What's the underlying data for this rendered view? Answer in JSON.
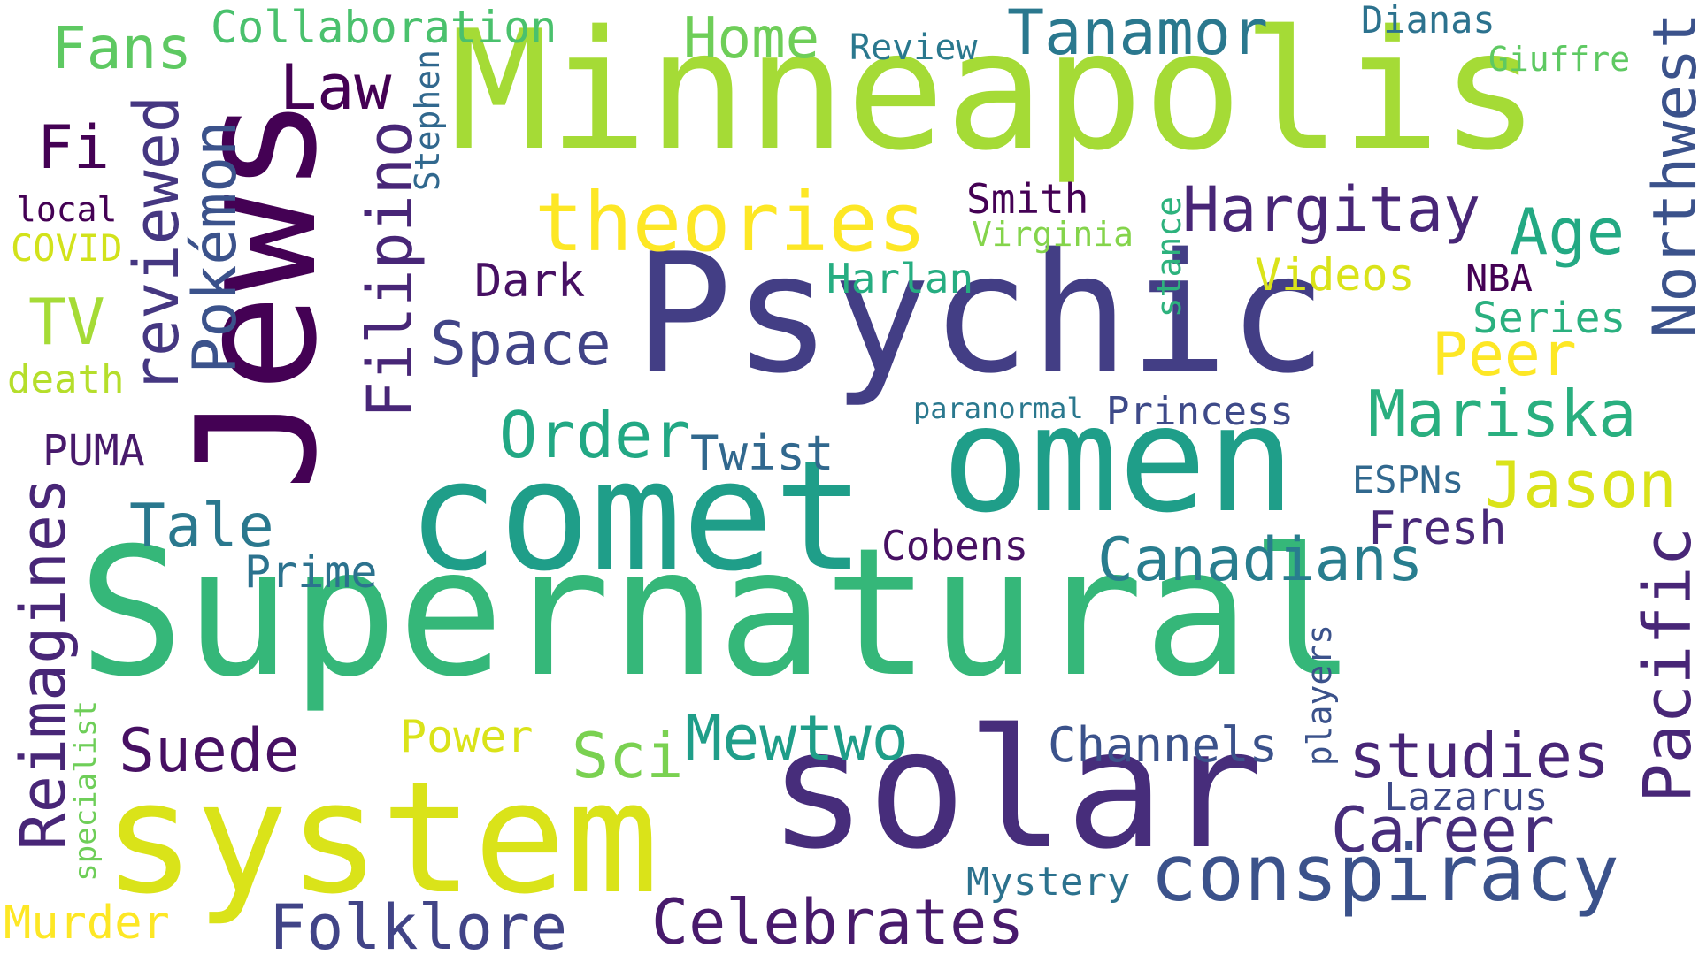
{
  "words": {
    "supernatural": "Supernatural",
    "minneapolis": "Minneapolis",
    "psychic": "Psychic",
    "comet": "comet",
    "omen": "omen",
    "system": "system",
    "solar": "solar",
    "jews": "Jews",
    "theories": "theories",
    "conspiracy": "conspiracy",
    "reimagines": "Reimagines",
    "reviewed": "reviewed",
    "pokemon": "Pokémon",
    "filipino": "Filipino",
    "northwest": "Northwest",
    "pacific": "Pacific",
    "tanamor": "Tanamor",
    "home": "Home",
    "fans": "Fans",
    "collaboration": "Collaboration",
    "law": "Law",
    "fi": "Fi",
    "local": "local",
    "covid": "COVID",
    "tv": "TV",
    "death": "death",
    "puma": "PUMA",
    "tale": "Tale",
    "prime": "Prime",
    "suede": "Suede",
    "specialist": "specialist",
    "murder": "Murder",
    "folklore": "Folklore",
    "celebrates": "Celebrates",
    "mystery": "Mystery",
    "review": "Review",
    "dianas": "Dianas",
    "giuffre": "Giuffre",
    "stephen": "Stephen",
    "smith": "Smith",
    "virginia": "Virginia",
    "stance": "stance",
    "hargitay": "Hargitay",
    "age": "Age",
    "dark": "Dark",
    "harlan": "Harlan",
    "videos": "Videos",
    "nba": "NBA",
    "series": "Series",
    "space": "Space",
    "peer": "Peer",
    "paranormal": "paranormal",
    "princess": "Princess",
    "mariska": "Mariska",
    "order": "Order",
    "twist": "Twist",
    "espns": "ESPNs",
    "jason": "Jason",
    "cobens": "Cobens",
    "fresh": "Fresh",
    "canadians": "Canadians",
    "power": "Power",
    "sci": "Sci",
    "mewtwo": "Mewtwo",
    "channels": "Channels",
    "players": "players",
    "studies": "studies",
    "lazarus": "Lazarus",
    "career": "Career"
  },
  "colors": {
    "supernatural": "#35b779",
    "minneapolis": "#a5db36",
    "psychic": "#433e85",
    "comet": "#1f9e89",
    "omen": "#1f9e89",
    "system": "#dae319",
    "solar": "#472d7b",
    "jews": "#440154",
    "theories": "#fde725",
    "conspiracy": "#3b528b",
    "reimagines": "#482677",
    "reviewed": "#453781",
    "pokemon": "#3b528b",
    "filipino": "#482677",
    "northwest": "#3b528b",
    "pacific": "#482677",
    "tanamor": "#2a788e",
    "home": "#6ece58",
    "fans": "#5ec962",
    "collaboration": "#4ac16d",
    "law": "#440154",
    "fi": "#440154",
    "local": "#440154",
    "covid": "#d2e21b",
    "tv": "#a5db36",
    "death": "#b5de2b",
    "puma": "#481a6c",
    "tale": "#2a788e",
    "prime": "#2c728e",
    "suede": "#471063",
    "specialist": "#6ece58",
    "murder": "#fde725",
    "folklore": "#414487",
    "celebrates": "#481a6c",
    "mystery": "#2c728e",
    "review": "#2a788e",
    "dianas": "#2c728e",
    "giuffre": "#5ec962",
    "stephen": "#31688e",
    "smith": "#440154",
    "virginia": "#84d44b",
    "stance": "#2db27d",
    "hargitay": "#482677",
    "age": "#23a983",
    "dark": "#471063",
    "harlan": "#26ad81",
    "videos": "#dae319",
    "nba": "#440154",
    "series": "#2ab07f",
    "space": "#414487",
    "peer": "#fde725",
    "paranormal": "#2a788e",
    "princess": "#3e4a89",
    "mariska": "#29af7f",
    "order": "#22a884",
    "twist": "#31688e",
    "espns": "#31688e",
    "jason": "#dae319",
    "cobens": "#471063",
    "fresh": "#482878",
    "canadians": "#287d8e",
    "power": "#dae319",
    "sci": "#7ad151",
    "mewtwo": "#1f9e89",
    "channels": "#3b528b",
    "players": "#3b528b",
    "studies": "#482677",
    "lazarus": "#3e4a89",
    "career": "#472d7b"
  }
}
